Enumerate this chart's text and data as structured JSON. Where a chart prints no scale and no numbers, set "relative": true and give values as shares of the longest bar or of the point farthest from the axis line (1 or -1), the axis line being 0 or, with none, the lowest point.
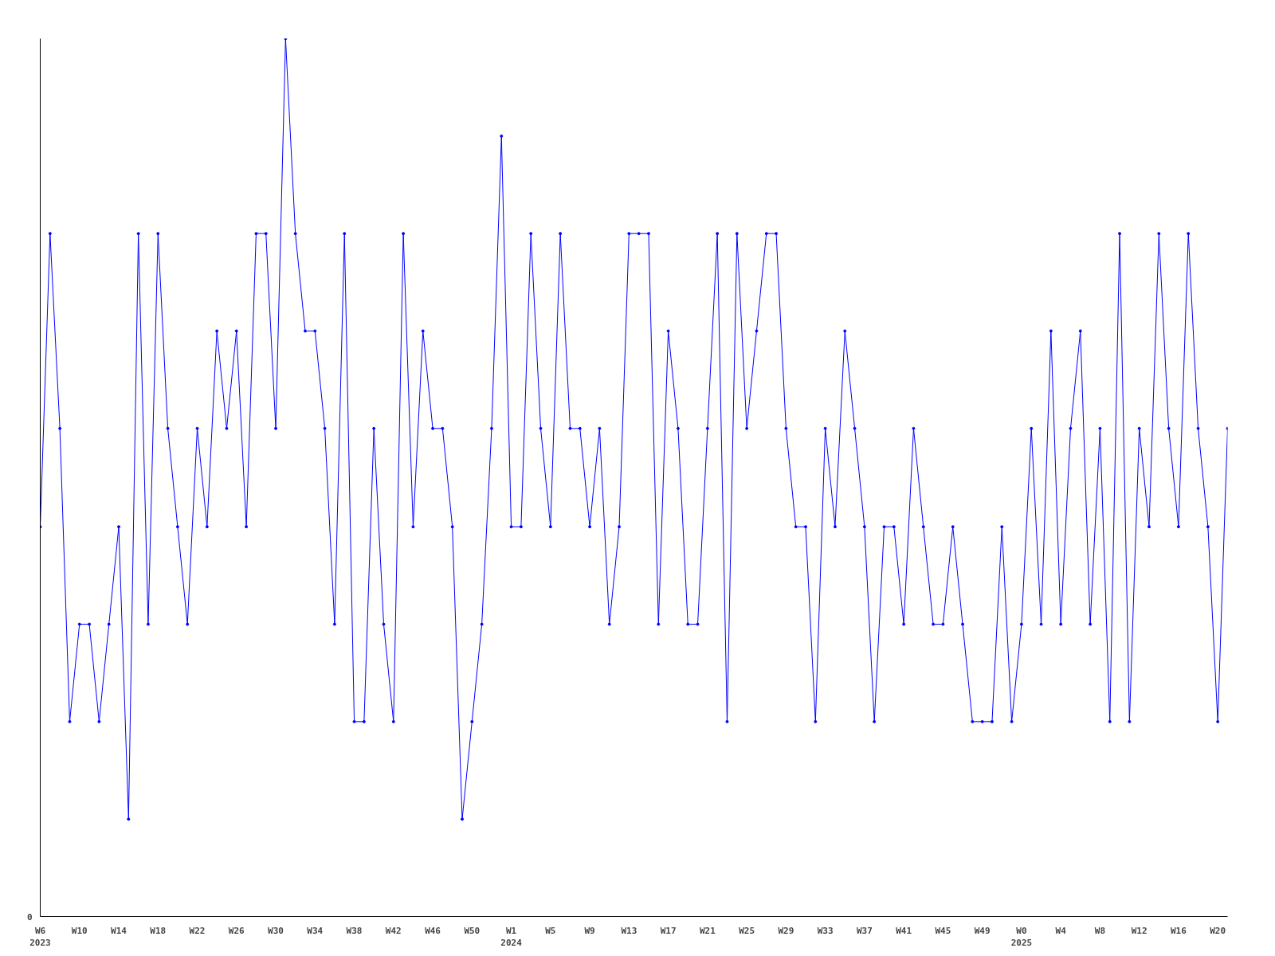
{
  "chart_data": {
    "type": "line",
    "relative": true,
    "color": "#0000ff",
    "marker": "circle",
    "line_style": "solid",
    "grid": false,
    "annotations": [
      "0"
    ],
    "categories": [
      "W6\n2023",
      null,
      null,
      null,
      "W10",
      null,
      null,
      null,
      "W14",
      null,
      null,
      null,
      "W18",
      null,
      null,
      null,
      "W22",
      null,
      null,
      null,
      "W26",
      null,
      null,
      null,
      "W30",
      null,
      null,
      null,
      "W34",
      null,
      null,
      null,
      "W38",
      null,
      null,
      null,
      "W42",
      null,
      null,
      null,
      "W46",
      null,
      null,
      null,
      "W50",
      null,
      null,
      null,
      "W1\n2024",
      null,
      null,
      null,
      "W5",
      null,
      null,
      null,
      "W9",
      null,
      null,
      null,
      "W13",
      null,
      null,
      null,
      "W17",
      null,
      null,
      null,
      "W21",
      null,
      null,
      null,
      "W25",
      null,
      null,
      null,
      "W29",
      null,
      null,
      null,
      "W33",
      null,
      null,
      null,
      "W37",
      null,
      null,
      null,
      "W41",
      null,
      null,
      null,
      "W45",
      null,
      null,
      null,
      "W49",
      null,
      null,
      null,
      "W0\n2025",
      null,
      null,
      null,
      "W4",
      null,
      null,
      null,
      "W8",
      null,
      null,
      null,
      "W12",
      null,
      null,
      null,
      "W16",
      null,
      null,
      null,
      "W20",
      null
    ],
    "values": [
      0.444,
      0.778,
      0.556,
      0.222,
      0.333,
      0.333,
      0.222,
      0.333,
      0.444,
      0.111,
      0.778,
      0.333,
      0.778,
      0.556,
      0.444,
      0.333,
      0.556,
      0.444,
      0.667,
      0.556,
      0.667,
      0.444,
      0.778,
      0.778,
      0.556,
      1,
      0.778,
      0.667,
      0.667,
      0.556,
      0.333,
      0.778,
      0.222,
      0.222,
      0.556,
      0.333,
      0.222,
      0.778,
      0.444,
      0.667,
      0.556,
      0.556,
      0.444,
      0.111,
      0.222,
      0.333,
      0.556,
      0.889,
      0.444,
      0.444,
      0.778,
      0.556,
      0.444,
      0.778,
      0.556,
      0.556,
      0.444,
      0.556,
      0.333,
      0.444,
      0.778,
      0.778,
      0.778,
      0.333,
      0.667,
      0.556,
      0.333,
      0.333,
      0.556,
      0.778,
      0.222,
      0.778,
      0.556,
      0.667,
      0.778,
      0.778,
      0.556,
      0.444,
      0.444,
      0.222,
      0.556,
      0.444,
      0.667,
      0.556,
      0.444,
      0.222,
      0.444,
      0.444,
      0.333,
      0.556,
      0.444,
      0.333,
      0.333,
      0.444,
      0.333,
      0.222,
      0.222,
      0.222,
      0.444,
      0.222,
      0.333,
      0.556,
      0.333,
      0.667,
      0.333,
      0.556,
      0.667,
      0.333,
      0.556,
      0.222,
      0.778,
      0.222,
      0.556,
      0.444,
      0.778,
      0.556,
      0.444,
      0.778,
      0.556,
      0.444,
      0.222,
      0.556
    ]
  }
}
